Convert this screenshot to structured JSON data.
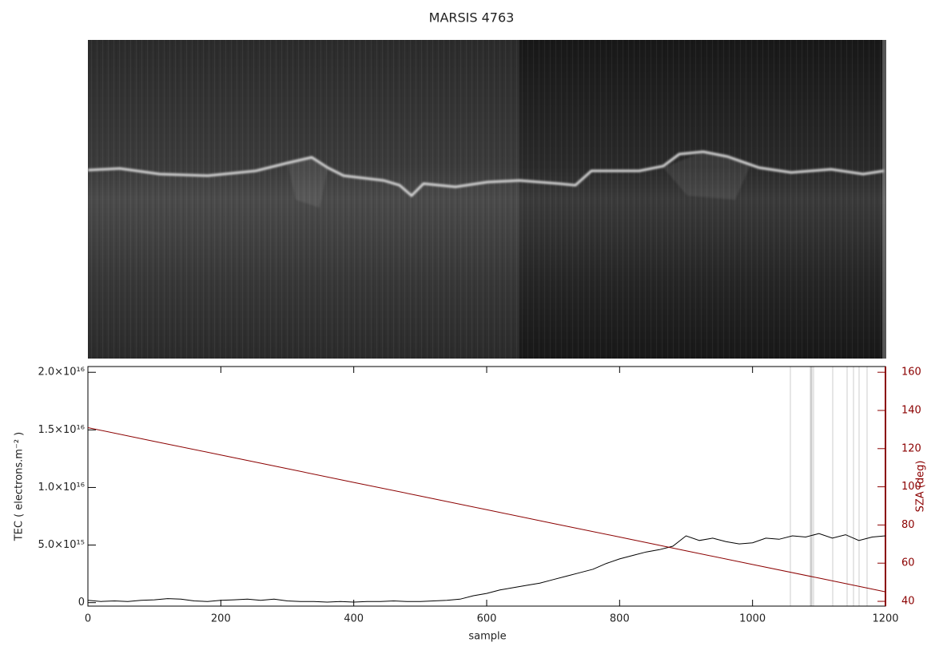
{
  "chart_data": {
    "type": "line",
    "title": "MARSIS 4763",
    "xlabel": "sample",
    "ylabel": "TEC ( electrons.m⁻² )",
    "y2label": "SZA (deg)",
    "xlim": [
      0,
      1200
    ],
    "xticks": [
      0,
      200,
      400,
      600,
      800,
      1000,
      1200
    ],
    "ylim": [
      -300000000000000.0,
      2.05e+16
    ],
    "yticks": [
      {
        "value": 0,
        "label": "0"
      },
      {
        "value": 5000000000000000.0,
        "label": "5.0×10¹⁵"
      },
      {
        "value": 1e+16,
        "label": "1.0×10¹⁶"
      },
      {
        "value": 1.5e+16,
        "label": "1.5×10¹⁶"
      },
      {
        "value": 2e+16,
        "label": "2.0×10¹⁶"
      }
    ],
    "y2lim": [
      37.5,
      163
    ],
    "y2ticks": [
      40,
      60,
      80,
      100,
      120,
      140,
      160
    ],
    "series": [
      {
        "name": "TEC",
        "color": "#000000",
        "x": [
          0,
          20,
          40,
          60,
          80,
          100,
          120,
          140,
          160,
          180,
          200,
          220,
          240,
          260,
          280,
          300,
          320,
          340,
          360,
          380,
          400,
          420,
          440,
          460,
          480,
          500,
          520,
          540,
          560,
          580,
          600,
          620,
          640,
          660,
          680,
          700,
          720,
          740,
          760,
          780,
          800,
          820,
          840,
          860,
          880,
          900,
          920,
          940,
          960,
          980,
          1000,
          1020,
          1040,
          1060,
          1080,
          1100,
          1120,
          1140,
          1160,
          1180,
          1200
        ],
        "values": [
          200000000000000.0,
          100000000000000.0,
          150000000000000.0,
          100000000000000.0,
          200000000000000.0,
          250000000000000.0,
          350000000000000.0,
          300000000000000.0,
          150000000000000.0,
          100000000000000.0,
          200000000000000.0,
          250000000000000.0,
          300000000000000.0,
          200000000000000.0,
          300000000000000.0,
          150000000000000.0,
          100000000000000.0,
          100000000000000.0,
          50000000000000.0,
          100000000000000.0,
          50000000000000.0,
          100000000000000.0,
          100000000000000.0,
          150000000000000.0,
          100000000000000.0,
          100000000000000.0,
          150000000000000.0,
          200000000000000.0,
          300000000000000.0,
          600000000000000.0,
          800000000000000.0,
          1100000000000000.0,
          1300000000000000.0,
          1500000000000000.0,
          1700000000000000.0,
          2000000000000000.0,
          2300000000000000.0,
          2600000000000000.0,
          2900000000000000.0,
          3400000000000000.0,
          3800000000000000.0,
          4100000000000000.0,
          4400000000000000.0,
          4600000000000000.0,
          4900000000000000.0,
          5800000000000000.0,
          5400000000000000.0,
          5600000000000000.0,
          5300000000000000.0,
          5100000000000000.0,
          5200000000000000.0,
          5600000000000000.0,
          5500000000000000.0,
          5800000000000000.0,
          5700000000000000.0,
          6000000000000000.0,
          5600000000000000.0,
          5900000000000000.0,
          5400000000000000.0,
          5700000000000000.0,
          5800000000000000.0
        ]
      },
      {
        "name": "SZA",
        "color": "#8b0000",
        "axis": "y2",
        "x": [
          0,
          100,
          200,
          300,
          400,
          500,
          600,
          700,
          800,
          900,
          1000,
          1100,
          1200
        ],
        "values": [
          131,
          123.8,
          116.7,
          109.5,
          102.3,
          95.2,
          88,
          80.8,
          73.7,
          66.5,
          59.3,
          52.2,
          45
        ]
      }
    ]
  }
}
